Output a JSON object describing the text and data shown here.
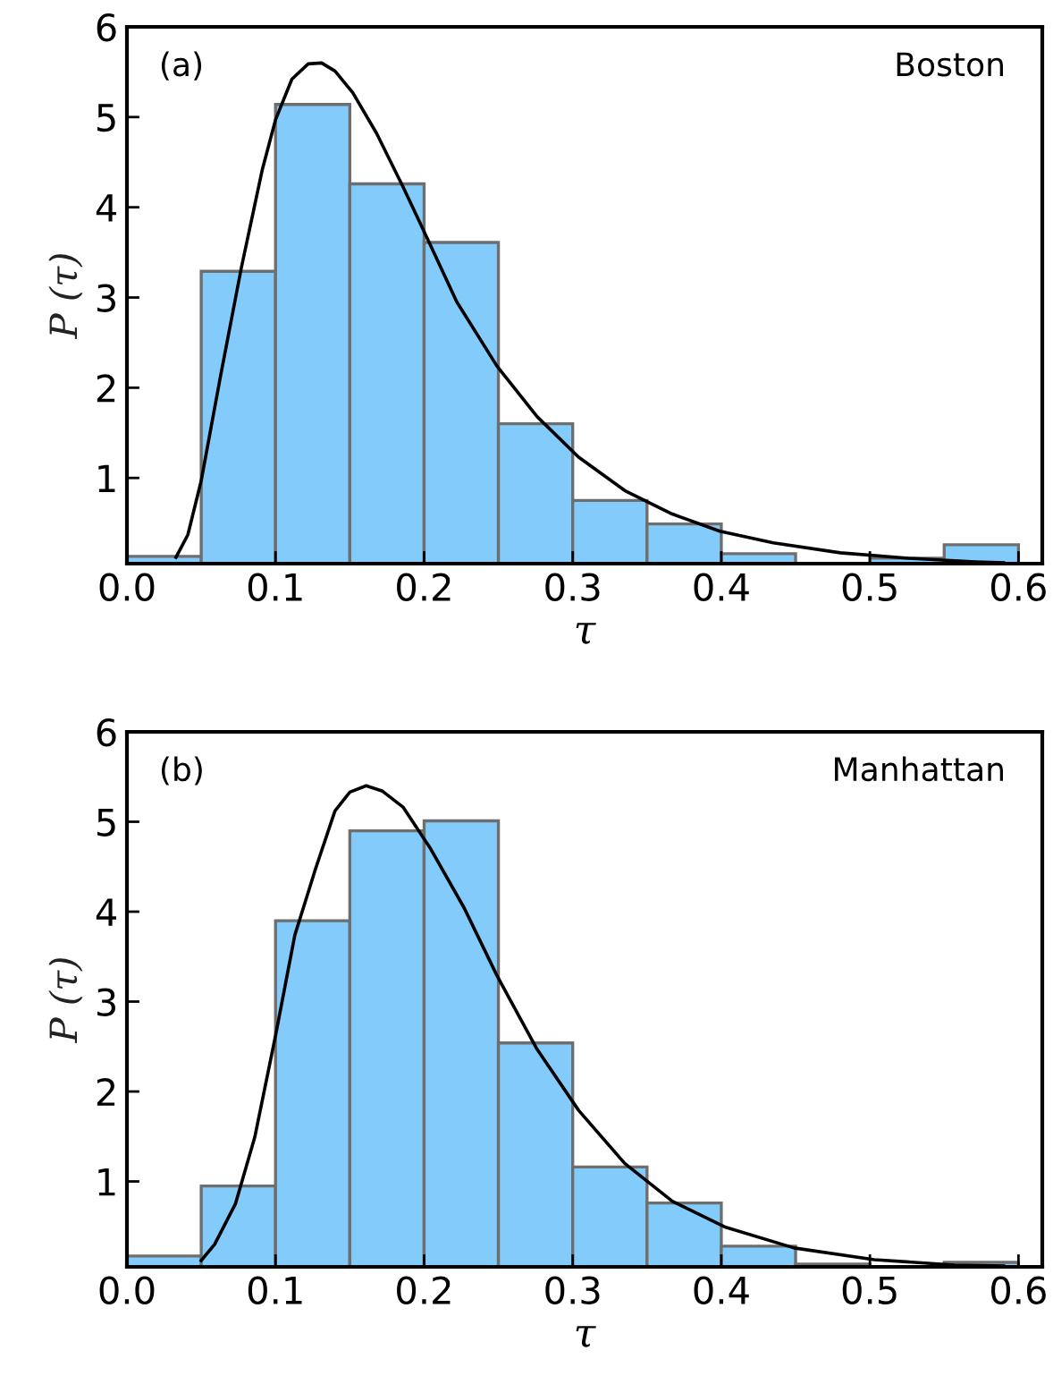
{
  "chart_data": [
    {
      "type": "histogram",
      "xlabel": "τ",
      "ylabel": "P (τ)",
      "annotations": [
        "(a)",
        "Boston"
      ],
      "color": "#82cbfa",
      "bins": [
        0,
        0.05,
        0.1,
        0.15,
        0.2,
        0.25,
        0.3,
        0.35,
        0.4,
        0.45,
        0.5,
        0.55,
        0.6
      ],
      "values": [
        0.13,
        3.29,
        5.14,
        4.26,
        3.61,
        1.6,
        0.75,
        0.49,
        0.16,
        null,
        0.11,
        0.26
      ],
      "series": [
        {
          "type": "line",
          "color": "#000000",
          "x": [
            0.033,
            0.041,
            0.05,
            0.063,
            0.077,
            0.091,
            0.1,
            0.111,
            0.122,
            0.131,
            0.14,
            0.152,
            0.168,
            0.186,
            0.202,
            0.222,
            0.249,
            0.276,
            0.304,
            0.335,
            0.367,
            0.399,
            0.435,
            0.48,
            0.526,
            0.571,
            0.59
          ],
          "values": [
            0.12,
            0.37,
            0.97,
            2.13,
            3.33,
            4.41,
            4.97,
            5.42,
            5.59,
            5.6,
            5.51,
            5.27,
            4.82,
            4.22,
            3.66,
            2.95,
            2.24,
            1.68,
            1.23,
            0.86,
            0.6,
            0.41,
            0.28,
            0.17,
            0.11,
            0.07,
            0.06
          ]
        }
      ],
      "xlim": [
        0,
        0.616
      ],
      "ylim": [
        0.05,
        6
      ],
      "xticks": [
        {
          "value": 0,
          "label": "0.0"
        },
        0.1,
        0.2,
        0.3,
        0.4,
        0.5,
        0.6
      ],
      "yticks": [
        1,
        2,
        3,
        4,
        5,
        6
      ],
      "grid": false,
      "legend": false
    },
    {
      "type": "histogram",
      "xlabel": "τ",
      "ylabel": "P (τ)",
      "annotations": [
        "(b)",
        "Manhattan"
      ],
      "color": "#82cbfa",
      "bins": [
        0,
        0.05,
        0.1,
        0.15,
        0.2,
        0.25,
        0.3,
        0.35,
        0.4,
        0.45,
        0.5,
        0.55,
        0.6
      ],
      "values": [
        0.17,
        0.95,
        3.9,
        4.9,
        5.01,
        2.54,
        1.16,
        0.76,
        0.28,
        0.08,
        null,
        0.1
      ],
      "series": [
        {
          "type": "line",
          "color": "#000000",
          "x": [
            0.05,
            0.059,
            0.073,
            0.086,
            0.1,
            0.113,
            0.127,
            0.14,
            0.15,
            0.161,
            0.172,
            0.186,
            0.204,
            0.227,
            0.249,
            0.276,
            0.304,
            0.335,
            0.367,
            0.403,
            0.449,
            0.503,
            0.557,
            0.59
          ],
          "values": [
            0.12,
            0.3,
            0.75,
            1.49,
            2.62,
            3.74,
            4.48,
            5.12,
            5.33,
            5.4,
            5.34,
            5.16,
            4.71,
            4.04,
            3.29,
            2.47,
            1.79,
            1.2,
            0.78,
            0.49,
            0.26,
            0.13,
            0.07,
            0.06
          ]
        }
      ],
      "xlim": [
        0,
        0.616
      ],
      "ylim": [
        0.05,
        6
      ],
      "xticks": [
        {
          "value": 0,
          "label": "0.0"
        },
        0.1,
        0.2,
        0.3,
        0.4,
        0.5,
        0.6
      ],
      "yticks": [
        1,
        2,
        3,
        4,
        5,
        6
      ],
      "grid": false,
      "legend": false
    }
  ]
}
